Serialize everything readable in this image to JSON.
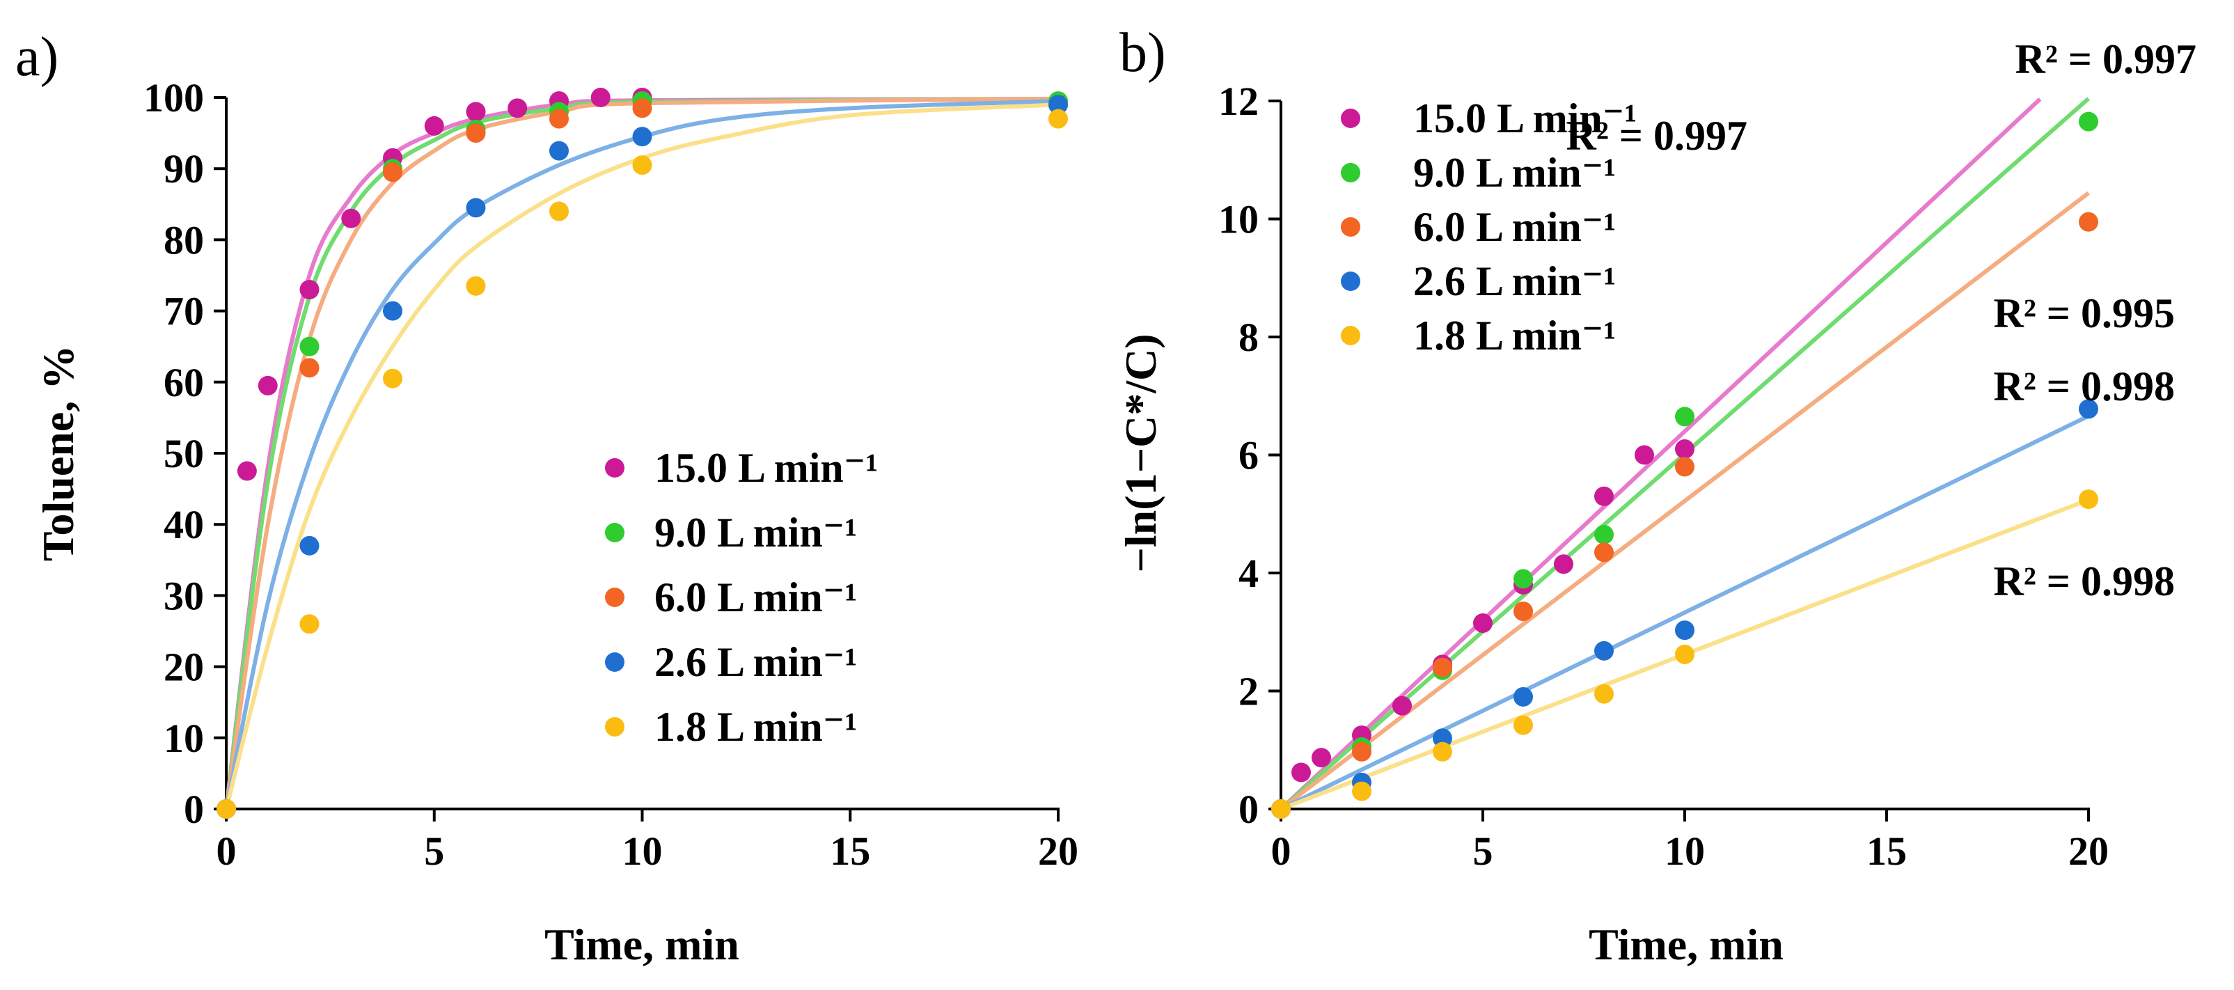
{
  "chart_data": [
    {
      "id": "a",
      "panel_label": "a)",
      "type": "scatter",
      "xlabel": "Time, min",
      "ylabel": "Toluene, %",
      "xlim": [
        0,
        20
      ],
      "ylim": [
        0,
        100
      ],
      "xticks": [
        0,
        5,
        10,
        15,
        20
      ],
      "yticks": [
        0,
        10,
        20,
        30,
        40,
        50,
        60,
        70,
        80,
        90,
        100
      ],
      "legend_position": "bottom-right",
      "series": [
        {
          "name": "15.0 L min⁻¹",
          "color": "#CC1A96",
          "line_color": "#E87ACD",
          "x": [
            0,
            0.5,
            1,
            2,
            3,
            4,
            5,
            6,
            7,
            8,
            9,
            10
          ],
          "y": [
            0,
            47.5,
            59.5,
            73,
            83,
            91.5,
            96,
            98,
            98.5,
            99.5,
            100,
            100
          ],
          "fit_x": [
            0,
            1,
            2,
            3,
            4,
            5,
            6,
            8,
            10,
            20
          ],
          "fit_y": [
            0,
            48,
            75,
            86,
            92,
            95,
            97,
            99,
            99.6,
            99.8
          ]
        },
        {
          "name": "9.0 L min⁻¹",
          "color": "#2ECC2E",
          "line_color": "#6FDC6F",
          "x": [
            0,
            2,
            4,
            6,
            8,
            10,
            20
          ],
          "y": [
            0,
            65,
            90,
            95.5,
            98,
            99.5,
            99.5
          ],
          "fit_x": [
            0,
            1,
            2,
            3,
            4,
            5,
            6,
            8,
            10,
            20
          ],
          "fit_y": [
            0,
            46,
            72,
            84,
            90.5,
            94,
            96.5,
            98.5,
            99.4,
            99.8
          ]
        },
        {
          "name": "6.0 L min⁻¹",
          "color": "#F26522",
          "line_color": "#F5AC80",
          "x": [
            0,
            2,
            4,
            6,
            8,
            10,
            20
          ],
          "y": [
            0,
            62,
            89.5,
            95,
            97,
            98.5,
            99
          ],
          "fit_x": [
            0,
            1,
            2,
            3,
            4,
            5,
            6,
            8,
            10,
            20
          ],
          "fit_y": [
            0,
            40,
            66,
            80,
            88,
            92.5,
            95.5,
            98,
            99.2,
            99.8
          ]
        },
        {
          "name": "2.6 L min⁻¹",
          "color": "#1F6FD0",
          "line_color": "#7DB0E6",
          "x": [
            0,
            2,
            4,
            6,
            8,
            10,
            20
          ],
          "y": [
            0,
            37,
            70,
            84.5,
            92.5,
            94.5,
            99
          ],
          "fit_x": [
            0,
            1,
            2,
            3,
            4,
            5,
            6,
            8,
            10,
            12,
            15,
            20
          ],
          "fit_y": [
            0,
            29,
            49,
            63,
            73,
            79.5,
            84.5,
            90.5,
            94.5,
            97,
            98.5,
            99.5
          ]
        },
        {
          "name": "1.8 L min⁻¹",
          "color": "#FBBC12",
          "line_color": "#FBE08A",
          "x": [
            0,
            2,
            4,
            6,
            8,
            10,
            20
          ],
          "y": [
            0,
            26,
            60.5,
            73.5,
            84,
            90.5,
            97
          ],
          "fit_x": [
            0,
            1,
            2,
            3,
            4,
            5,
            6,
            8,
            10,
            12,
            15,
            20
          ],
          "fit_y": [
            0,
            23,
            42,
            55,
            65,
            73,
            79,
            86.5,
            91.5,
            94.5,
            97.5,
            99
          ]
        }
      ]
    },
    {
      "id": "b",
      "panel_label": "b)",
      "type": "scatter",
      "xlabel": "Time, min",
      "ylabel": "−ln(1−C*/C)",
      "xlim": [
        0,
        20
      ],
      "ylim": [
        0,
        12
      ],
      "xticks": [
        0,
        5,
        10,
        15,
        20
      ],
      "yticks": [
        0,
        2,
        4,
        6,
        8,
        10,
        12
      ],
      "legend_position": "top-left",
      "series": [
        {
          "name": "15.0 L min⁻¹",
          "color": "#CC1A96",
          "line_color": "#E87ACD",
          "x": [
            0,
            0.5,
            1,
            2,
            3,
            4,
            5,
            6,
            7,
            8,
            9,
            10
          ],
          "y": [
            0,
            0.62,
            0.87,
            1.25,
            1.75,
            2.45,
            3.15,
            3.8,
            4.15,
            5.3,
            6.0,
            6.1
          ],
          "slope": 0.64,
          "fit_x_max": 18.8
        },
        {
          "name": "9.0 L min⁻¹",
          "color": "#2ECC2E",
          "line_color": "#6FDC6F",
          "x": [
            0,
            2,
            4,
            6,
            8,
            10,
            20
          ],
          "y": [
            0,
            1.05,
            2.35,
            3.9,
            4.65,
            6.65,
            11.65
          ],
          "slope": 0.602,
          "fit_x_max": 20
        },
        {
          "name": "6.0 L min⁻¹",
          "color": "#F26522",
          "line_color": "#F5AC80",
          "x": [
            0,
            2,
            4,
            6,
            8,
            10,
            20
          ],
          "y": [
            0,
            0.97,
            2.4,
            3.35,
            4.35,
            5.8,
            9.95
          ],
          "slope": 0.522,
          "fit_x_max": 20
        },
        {
          "name": "2.6 L min⁻¹",
          "color": "#1F6FD0",
          "line_color": "#7DB0E6",
          "x": [
            0,
            2,
            4,
            6,
            8,
            10,
            20
          ],
          "y": [
            0,
            0.45,
            1.2,
            1.9,
            2.68,
            3.03,
            6.78
          ],
          "slope": 0.333,
          "fit_x_max": 20
        },
        {
          "name": "1.8 L min⁻¹",
          "color": "#FBBC12",
          "line_color": "#FBE08A",
          "x": [
            0,
            2,
            4,
            6,
            8,
            10,
            20
          ],
          "y": [
            0,
            0.3,
            0.97,
            1.42,
            1.95,
            2.62,
            5.25
          ],
          "slope": 0.262,
          "fit_x_max": 20
        }
      ],
      "annotations": [
        {
          "text": "R² = 0.997",
          "anchor": "above-top-right"
        },
        {
          "text": "R² = 0.997",
          "anchor": "right-of-legend"
        },
        {
          "text": "R² = 0.995",
          "anchor": "right-middle-upper"
        },
        {
          "text": "R² = 0.998",
          "anchor": "right-middle"
        },
        {
          "text": "R² = 0.998",
          "anchor": "right-lower"
        }
      ]
    }
  ]
}
